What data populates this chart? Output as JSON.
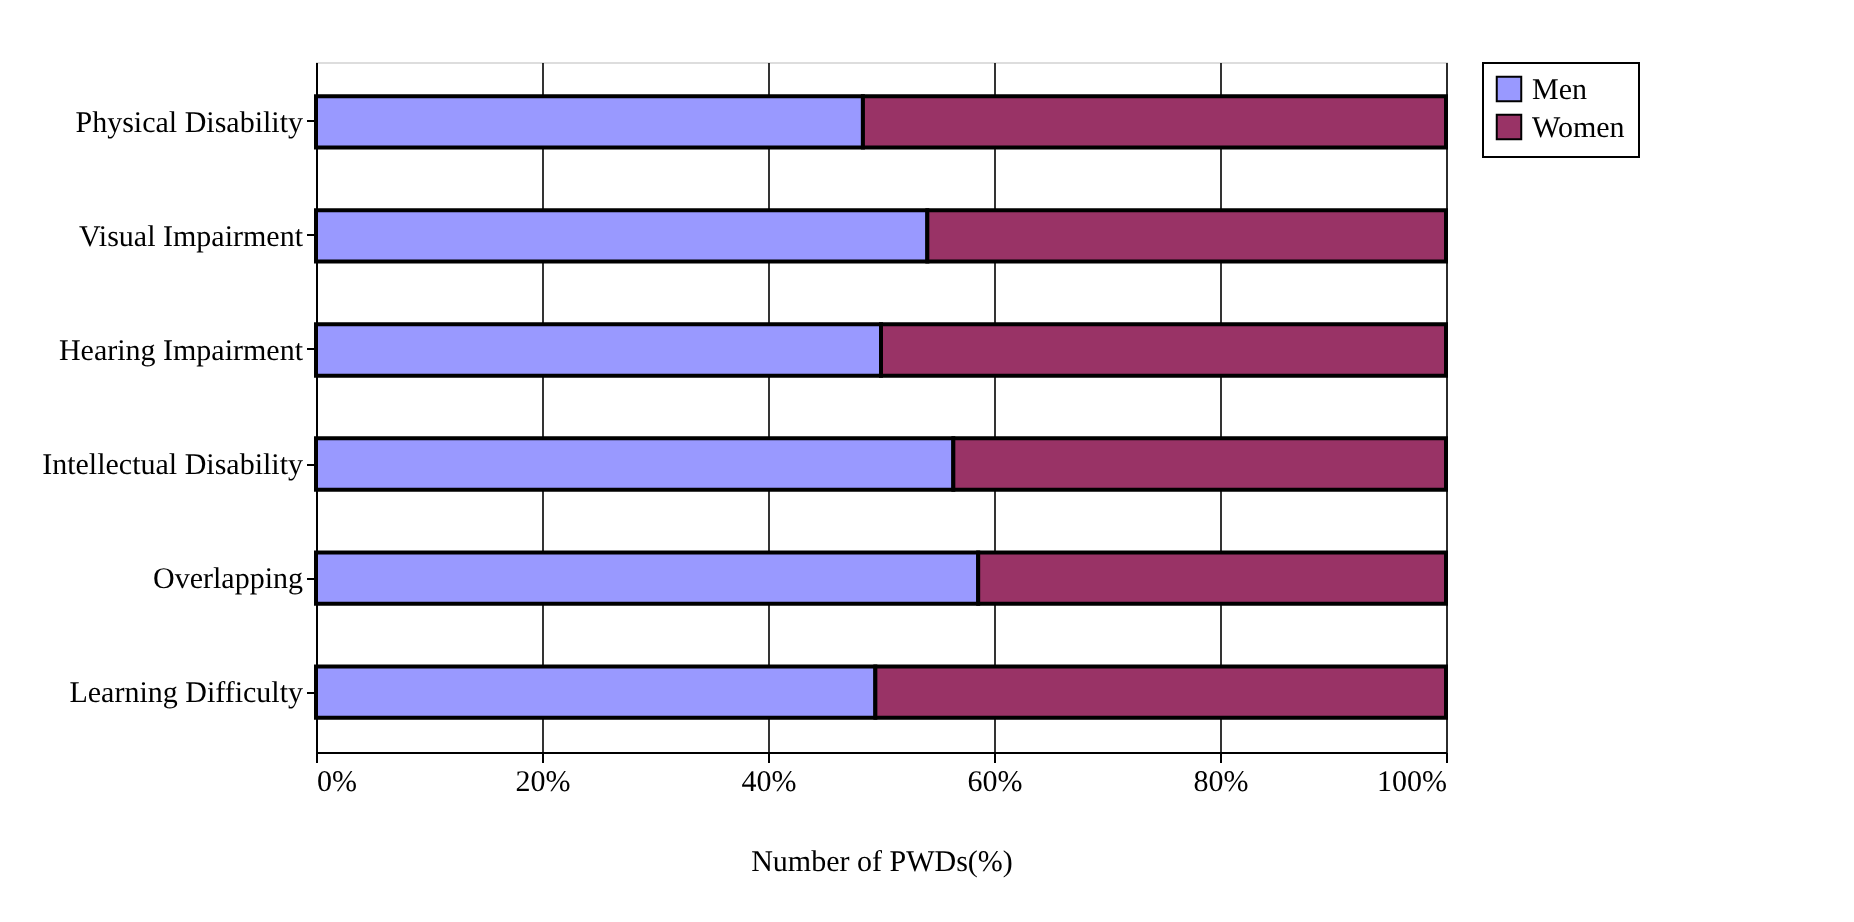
{
  "chart_data": {
    "type": "bar",
    "orientation": "horizontal",
    "stacked": true,
    "xlabel": "Number of PWDs(%)",
    "categories": [
      "Physical Disability",
      "Visual Impairment",
      "Hearing Impairment",
      "Intellectual Disability",
      "Overlapping",
      "Learning Difficulty"
    ],
    "series": [
      {
        "name": "Men",
        "color": "#9999ff",
        "values": [
          48.4,
          54.1,
          50.0,
          56.4,
          58.6,
          49.5
        ]
      },
      {
        "name": "Women",
        "color": "#993366",
        "values": [
          51.6,
          45.9,
          50.0,
          43.6,
          41.4,
          50.5
        ]
      }
    ],
    "xlim": [
      0,
      100
    ],
    "xticks": [
      {
        "value": 0,
        "label": "0%"
      },
      {
        "value": 20,
        "label": "20%"
      },
      {
        "value": 40,
        "label": "40%"
      },
      {
        "value": 60,
        "label": "60%"
      },
      {
        "value": 80,
        "label": "80%"
      },
      {
        "value": 100,
        "label": "100%"
      }
    ],
    "grid": "x",
    "legend": "right"
  }
}
